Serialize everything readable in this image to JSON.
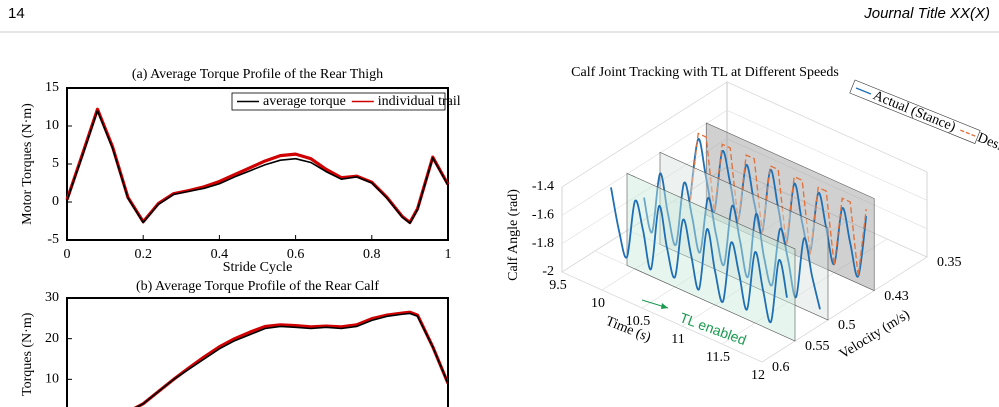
{
  "header": {
    "page": "14",
    "journal": "Journal Title XX(X)"
  },
  "chart_data": [
    {
      "type": "line",
      "title": "(a) Average Torque Profile of the Rear Thigh",
      "xlabel": "Stride Cycle",
      "ylabel": "Motor Torques  (N·m)",
      "x": [
        0,
        0.04,
        0.08,
        0.12,
        0.16,
        0.2,
        0.24,
        0.28,
        0.32,
        0.36,
        0.4,
        0.44,
        0.48,
        0.52,
        0.56,
        0.6,
        0.64,
        0.68,
        0.72,
        0.76,
        0.8,
        0.84,
        0.88,
        0.9,
        0.92,
        0.96,
        1
      ],
      "series": [
        {
          "name": "individual trail",
          "color": "#d00000",
          "values": [
            0.3,
            6.2,
            12.2,
            7.2,
            0.6,
            -2.6,
            -0.2,
            1.1,
            1.5,
            2.0,
            2.7,
            3.6,
            4.5,
            5.4,
            6.1,
            6.3,
            5.7,
            4.3,
            3.2,
            3.4,
            2.6,
            0.6,
            -1.9,
            -2.7,
            -0.9,
            5.9,
            2.3
          ]
        },
        {
          "name": "average torque",
          "color": "#000000",
          "values": [
            0.2,
            6.0,
            12.0,
            7.0,
            0.5,
            -2.7,
            -0.3,
            1.0,
            1.4,
            1.8,
            2.4,
            3.3,
            4.1,
            4.9,
            5.5,
            5.7,
            5.2,
            4.0,
            3.0,
            3.3,
            2.5,
            0.5,
            -2.0,
            -2.8,
            -1.0,
            5.8,
            2.2
          ]
        }
      ],
      "xlim": [
        0,
        1
      ],
      "ylim": [
        -5,
        15
      ],
      "xticks": [
        0,
        0.2,
        0.4,
        0.6,
        0.8,
        1
      ],
      "yticks": [
        -5,
        0,
        5,
        10,
        15
      ]
    },
    {
      "type": "line",
      "title": "(b) Average Torque Profile of the Rear Calf",
      "ylabel": "Torques  (N·m)",
      "x": [
        0,
        0.04,
        0.08,
        0.12,
        0.16,
        0.2,
        0.24,
        0.28,
        0.32,
        0.36,
        0.4,
        0.44,
        0.48,
        0.52,
        0.56,
        0.6,
        0.64,
        0.68,
        0.72,
        0.76,
        0.8,
        0.84,
        0.88,
        0.9,
        0.92,
        0.96,
        1
      ],
      "series": [
        {
          "color": "#d00000",
          "values": [
            2,
            1.5,
            1,
            1,
            2,
            4,
            7,
            10,
            12.8,
            15.5,
            18,
            20,
            21.6,
            23,
            23.4,
            23.2,
            22.9,
            23.1,
            22.9,
            23.4,
            24.9,
            25.8,
            26.3,
            26.5,
            25.8,
            18,
            9
          ]
        },
        {
          "color": "#000000",
          "values": [
            2,
            1.5,
            1,
            1,
            2,
            4,
            7,
            10,
            12.5,
            15,
            17.5,
            19.5,
            21,
            22.5,
            23,
            22.8,
            22.5,
            22.8,
            22.5,
            23,
            24.5,
            25.5,
            26,
            26.2,
            25.5,
            18,
            9
          ]
        }
      ],
      "xlim": [
        0,
        1
      ],
      "ylim": [
        0,
        30
      ],
      "yticks": [
        10,
        20,
        30
      ]
    },
    {
      "type": "line3d",
      "title": "Calf Joint Tracking with TL at Different Speeds",
      "xlabel": "Time (s)",
      "ylabel": "Velocity (m/s)",
      "zlabel": "Calf Angle (rad)",
      "annotation": "TL enabled",
      "x": [
        9.7,
        9.8,
        9.9,
        10.0,
        10.1,
        10.2,
        10.3,
        10.4,
        10.5,
        10.6,
        10.7,
        10.8,
        10.9,
        11.0,
        11.1,
        11.2,
        11.3,
        11.4,
        11.5,
        11.6,
        11.7,
        11.8,
        11.9
      ],
      "series": [
        {
          "name": "Actual (Stance)",
          "color": "#1f6fb4",
          "velocity": 0.55,
          "values": [
            -1.5,
            -1.78,
            -1.94,
            -1.52,
            -1.7,
            -1.95,
            -1.48,
            -1.75,
            -1.93,
            -1.5,
            -1.72,
            -1.94,
            -1.49,
            -1.76,
            -1.95,
            -1.51,
            -1.7,
            -1.93,
            -1.5,
            -1.74,
            -1.94,
            -1.48,
            -1.72
          ]
        },
        {
          "color": "#1f6fb4",
          "velocity": 0.5,
          "values": [
            -1.72,
            -1.94,
            -1.5,
            -1.76,
            -1.95,
            -1.49,
            -1.7,
            -1.93,
            -1.52,
            -1.75,
            -1.94,
            -1.5,
            -1.72,
            -1.95,
            -1.48,
            -1.76,
            -1.93,
            -1.51,
            -1.7,
            -1.94,
            -1.5,
            -1.74,
            -1.95
          ]
        },
        {
          "color": "#1f6fb4",
          "velocity": 0.43,
          "values": [
            -1.94,
            -1.49,
            -1.74,
            -1.95,
            -1.5,
            -1.7,
            -1.93,
            -1.52,
            -1.76,
            -1.94,
            -1.48,
            -1.72,
            -1.95,
            -1.5,
            -1.75,
            -1.93,
            -1.49,
            -1.71,
            -1.94,
            -1.52,
            -1.74,
            -1.95,
            -1.5
          ]
        },
        {
          "name": "Desired",
          "color": "#e0703a",
          "dashed": true,
          "velocity": 0.43,
          "values": [
            -1.95,
            -1.45,
            -1.45,
            -1.95,
            -1.45,
            -1.45,
            -1.95,
            -1.45,
            -1.45,
            -1.95,
            -1.45,
            -1.45,
            -1.95,
            -1.45,
            -1.45,
            -1.95,
            -1.45,
            -1.45,
            -1.95,
            -1.45,
            -1.45,
            -1.95,
            -1.45
          ]
        }
      ],
      "xlim": [
        9.5,
        12
      ],
      "ylim": [
        0.35,
        0.6
      ],
      "zlim": [
        -2,
        -1.4
      ],
      "xticks": [
        9.5,
        10,
        10.5,
        11,
        11.5,
        12
      ],
      "yticks": [
        0.35,
        0.43,
        0.5,
        0.55,
        0.6
      ],
      "zticks": [
        -2,
        -1.8,
        -1.6,
        -1.4
      ]
    }
  ]
}
